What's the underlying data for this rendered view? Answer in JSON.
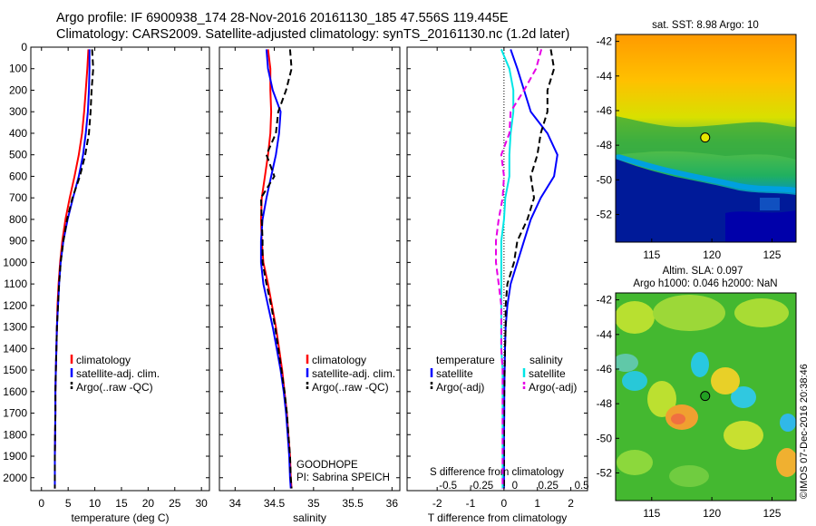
{
  "header": {
    "line1": "Argo profile: IF 6900938_174 28-Nov-2016 20161130_185 47.556S 119.445E",
    "line2": "Climatology: CARS2009. Satellite-adjusted climatology: synTS_20161130.nc (1.2d later)"
  },
  "colors": {
    "climatology": "#ff0000",
    "satellite": "#0000ff",
    "argo": "#000000",
    "sat_salinity": "#00e6e6",
    "argo_salinity": "#e600e6"
  },
  "depth_axis": {
    "ticks": [
      0,
      100,
      200,
      300,
      400,
      500,
      600,
      700,
      800,
      900,
      1000,
      1100,
      1200,
      1300,
      1400,
      1500,
      1600,
      1700,
      1800,
      1900,
      2000
    ],
    "ylim": [
      0,
      2060
    ]
  },
  "chart_data": [
    {
      "type": "line",
      "xlabel": "temperature (deg C)",
      "xticks": [
        0,
        5,
        10,
        15,
        20,
        25,
        30
      ],
      "xlim": [
        -2,
        31.5
      ],
      "legend": [
        "climatology",
        "satellite-adj. clim.",
        "Argo(..raw -QC)"
      ],
      "series": [
        {
          "name": "climatology",
          "style": "solid",
          "color": "#ff0000",
          "x": [
            8.8,
            8.6,
            8.3,
            8.0,
            7.6,
            7.0,
            6.2,
            5.3,
            4.5,
            3.9,
            3.5,
            3.2,
            3.0,
            2.9,
            2.8,
            2.7,
            2.6,
            2.6,
            2.55,
            2.5,
            2.5,
            2.5
          ],
          "y": [
            10,
            100,
            200,
            300,
            400,
            500,
            600,
            700,
            800,
            900,
            1000,
            1100,
            1200,
            1300,
            1400,
            1500,
            1600,
            1700,
            1800,
            1900,
            2000,
            2050
          ]
        },
        {
          "name": "satellite-adj. clim.",
          "style": "solid",
          "color": "#0000ff",
          "x": [
            9.0,
            9.0,
            8.9,
            8.7,
            8.3,
            7.8,
            7.0,
            5.9,
            4.9,
            4.1,
            3.6,
            3.3,
            3.1,
            2.9,
            2.8,
            2.7,
            2.6,
            2.6,
            2.55,
            2.5,
            2.5,
            2.5
          ],
          "y": [
            10,
            100,
            200,
            300,
            400,
            500,
            600,
            700,
            800,
            900,
            1000,
            1100,
            1200,
            1300,
            1400,
            1500,
            1600,
            1700,
            1800,
            1900,
            2000,
            2050
          ]
        },
        {
          "name": "Argo(..raw -QC)",
          "style": "dashed",
          "color": "#000000",
          "x": [
            9.5,
            9.7,
            9.4,
            9.2,
            8.9,
            8.2,
            7.2,
            5.8,
            4.8,
            4.1,
            3.6,
            3.3,
            3.1,
            2.9,
            2.8,
            2.7,
            2.6,
            2.6,
            2.55,
            2.5,
            2.5,
            2.5
          ],
          "y": [
            10,
            100,
            200,
            300,
            400,
            500,
            600,
            700,
            800,
            900,
            1000,
            1100,
            1200,
            1300,
            1400,
            1500,
            1600,
            1700,
            1800,
            1900,
            2000,
            2050
          ]
        }
      ]
    },
    {
      "type": "line",
      "xlabel": "salinity",
      "xticks": [
        34,
        34.5,
        35,
        35.5,
        36
      ],
      "xlim": [
        33.8,
        36.1
      ],
      "legend": [
        "climatology",
        "satellite-adj. clim.",
        "Argo(..raw -QC)"
      ],
      "annotation": [
        "GOODHOPE",
        "PI: Sabrina SPEICH"
      ],
      "series": [
        {
          "name": "climatology",
          "style": "solid",
          "color": "#ff0000",
          "x": [
            34.42,
            34.45,
            34.45,
            34.46,
            34.45,
            34.42,
            34.38,
            34.34,
            34.33,
            34.34,
            34.36,
            34.42,
            34.47,
            34.52,
            34.56,
            34.6,
            34.63,
            34.66,
            34.68,
            34.7,
            34.71,
            34.72
          ],
          "y": [
            10,
            100,
            200,
            300,
            400,
            500,
            600,
            700,
            800,
            900,
            1000,
            1100,
            1200,
            1300,
            1400,
            1500,
            1600,
            1700,
            1800,
            1900,
            2000,
            2050
          ]
        },
        {
          "name": "satellite-adj. clim.",
          "style": "solid",
          "color": "#0000ff",
          "x": [
            34.4,
            34.42,
            34.48,
            34.58,
            34.56,
            34.52,
            34.46,
            34.4,
            34.35,
            34.33,
            34.33,
            34.36,
            34.42,
            34.48,
            34.53,
            34.58,
            34.62,
            34.65,
            34.67,
            34.69,
            34.7,
            34.71
          ],
          "y": [
            10,
            100,
            200,
            300,
            400,
            500,
            600,
            700,
            800,
            900,
            1000,
            1100,
            1200,
            1300,
            1400,
            1500,
            1600,
            1700,
            1800,
            1900,
            2000,
            2050
          ]
        },
        {
          "name": "Argo(..raw -QC)",
          "style": "dashed",
          "color": "#000000",
          "x": [
            34.7,
            34.72,
            34.65,
            34.55,
            34.52,
            34.4,
            34.5,
            34.33,
            34.34,
            34.35,
            34.35,
            34.4,
            34.46,
            34.51,
            34.55,
            34.59,
            34.63,
            34.66,
            34.68,
            34.7,
            34.71,
            34.72
          ],
          "y": [
            10,
            100,
            200,
            300,
            400,
            500,
            600,
            700,
            800,
            900,
            1000,
            1100,
            1200,
            1300,
            1400,
            1500,
            1600,
            1700,
            1800,
            1900,
            2000,
            2050
          ]
        }
      ]
    },
    {
      "type": "line",
      "xlabel": "T difference from climatology",
      "xlabel_top": "S difference from climatology",
      "xticks": [
        -2,
        -1,
        0,
        1,
        2
      ],
      "xticks_top": [
        -0.5,
        -0.25,
        0,
        0.25,
        0.5
      ],
      "xlim": [
        -2.9,
        2.5
      ],
      "legend_temperature": [
        "temperature",
        "satellite",
        "Argo(-adj)"
      ],
      "legend_salinity": [
        "salinity",
        "satellite",
        "Argo(-adj)"
      ],
      "series": [
        {
          "name": "satellite",
          "group": "temperature",
          "style": "solid",
          "color": "#0000ff",
          "x": [
            0.2,
            0.4,
            0.6,
            0.8,
            1.3,
            1.6,
            1.5,
            1.1,
            0.8,
            0.6,
            0.4,
            0.2,
            0.1,
            0.05,
            0.03,
            0.02,
            0.01,
            0.01,
            0.0,
            0.0,
            0.0,
            0.0
          ],
          "y": [
            10,
            100,
            200,
            300,
            400,
            500,
            600,
            700,
            800,
            900,
            1000,
            1100,
            1200,
            1300,
            1400,
            1500,
            1600,
            1700,
            1800,
            1900,
            2000,
            2050
          ]
        },
        {
          "name": "Argo(-adj)",
          "group": "temperature",
          "style": "dashed",
          "color": "#000000",
          "x": [
            1.4,
            1.5,
            1.3,
            1.3,
            1.1,
            1.0,
            0.8,
            0.9,
            0.7,
            0.4,
            0.3,
            0.1,
            0.05,
            0.05,
            0.03,
            0.02,
            0.01,
            0.0,
            0.0,
            0.0,
            0.0,
            0.0
          ],
          "y": [
            10,
            100,
            200,
            300,
            400,
            500,
            600,
            700,
            800,
            900,
            1000,
            1100,
            1200,
            1300,
            1400,
            1500,
            1600,
            1700,
            1800,
            1900,
            2000,
            2050
          ]
        },
        {
          "name": "satellite",
          "group": "salinity",
          "style": "solid",
          "color": "#00e6e6",
          "x": [
            -0.02,
            0.04,
            0.07,
            0.07,
            0.05,
            0.04,
            0.04,
            0.01,
            0.0,
            -0.02,
            -0.02,
            -0.02,
            -0.02,
            -0.02,
            -0.02,
            -0.01,
            -0.01,
            -0.01,
            -0.01,
            -0.01,
            -0.01,
            -0.01
          ],
          "y": [
            10,
            100,
            200,
            300,
            400,
            500,
            600,
            700,
            800,
            900,
            1000,
            1100,
            1200,
            1300,
            1400,
            1500,
            1600,
            1700,
            1800,
            1900,
            2000,
            2050
          ]
        },
        {
          "name": "Argo(-adj)",
          "group": "salinity",
          "style": "dashed",
          "color": "#e600e6",
          "x": [
            0.28,
            0.24,
            0.15,
            0.05,
            0.04,
            -0.02,
            0.0,
            -0.01,
            -0.04,
            -0.06,
            -0.06,
            -0.04,
            -0.02,
            -0.02,
            -0.02,
            -0.01,
            -0.01,
            -0.01,
            -0.01,
            -0.01,
            -0.01,
            -0.01
          ],
          "y": [
            10,
            100,
            200,
            300,
            400,
            500,
            600,
            700,
            800,
            900,
            1000,
            1100,
            1200,
            1300,
            1400,
            1500,
            1600,
            1700,
            1800,
            1900,
            2000,
            2050
          ]
        }
      ]
    },
    {
      "type": "heatmap",
      "title": "sat. SST: 8.98 Argo: 10",
      "xticks": [
        115,
        120,
        125
      ],
      "yticks": [
        -42,
        -44,
        -46,
        -48,
        -50,
        -52
      ],
      "xlim": [
        112,
        127
      ],
      "ylim": [
        -53.6,
        -41.6
      ],
      "marker": {
        "lon": 119.445,
        "lat": -47.556,
        "color": "#e6e600"
      }
    },
    {
      "type": "heatmap",
      "title_lines": [
        "Altim. SLA: 0.097",
        "Argo h1000: 0.046 h2000: NaN"
      ],
      "xticks": [
        115,
        120,
        125
      ],
      "yticks": [
        -42,
        -44,
        -46,
        -48,
        -50,
        -52
      ],
      "xlim": [
        112,
        127
      ],
      "ylim": [
        -53.6,
        -41.6
      ],
      "marker": {
        "lon": 119.445,
        "lat": -47.556,
        "color": "#22a022"
      }
    }
  ],
  "credit": "©IMOS 07-Dec-2016 20:38:46"
}
